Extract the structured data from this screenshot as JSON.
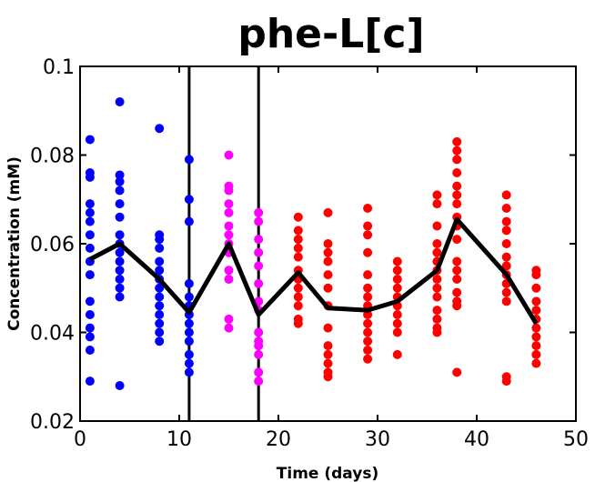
{
  "chart_data": {
    "type": "scatter",
    "title": "phe-L[c]",
    "xlabel": "Time (days)",
    "ylabel": "Concentration (mM)",
    "xlim": [
      0,
      50
    ],
    "ylim": [
      0.02,
      0.1
    ],
    "xticks": [
      0,
      10,
      20,
      30,
      40,
      50
    ],
    "yticks": [
      0.02,
      0.04,
      0.06,
      0.08,
      0.1
    ],
    "xtick_labels": [
      "0",
      "10",
      "20",
      "30",
      "40",
      "50"
    ],
    "ytick_labels": [
      "0.02",
      "0.04",
      "0.06",
      "0.08",
      "0.1"
    ],
    "grid": false,
    "legend": "none",
    "vertical_lines_x": [
      11,
      18
    ],
    "series": [
      {
        "color": "#0000ff",
        "points": [
          [
            1,
            0.0835
          ],
          [
            1,
            0.076
          ],
          [
            1,
            0.075
          ],
          [
            1,
            0.069
          ],
          [
            1,
            0.067
          ],
          [
            1,
            0.065
          ],
          [
            1,
            0.062
          ],
          [
            1,
            0.059
          ],
          [
            1,
            0.056
          ],
          [
            1,
            0.053
          ],
          [
            1,
            0.047
          ],
          [
            1,
            0.044
          ],
          [
            1,
            0.041
          ],
          [
            1,
            0.039
          ],
          [
            1,
            0.036
          ],
          [
            1,
            0.029
          ],
          [
            4,
            0.092
          ],
          [
            4,
            0.0755
          ],
          [
            4,
            0.074
          ],
          [
            4,
            0.072
          ],
          [
            4,
            0.069
          ],
          [
            4,
            0.066
          ],
          [
            4,
            0.062
          ],
          [
            4,
            0.06
          ],
          [
            4,
            0.058
          ],
          [
            4,
            0.056
          ],
          [
            4,
            0.054
          ],
          [
            4,
            0.052
          ],
          [
            4,
            0.05
          ],
          [
            4,
            0.048
          ],
          [
            4,
            0.028
          ],
          [
            8,
            0.086
          ],
          [
            8,
            0.062
          ],
          [
            8,
            0.061
          ],
          [
            8,
            0.059
          ],
          [
            8,
            0.056
          ],
          [
            8,
            0.054
          ],
          [
            8,
            0.052
          ],
          [
            8,
            0.05
          ],
          [
            8,
            0.048
          ],
          [
            8,
            0.046
          ],
          [
            8,
            0.044
          ],
          [
            8,
            0.042
          ],
          [
            8,
            0.04
          ],
          [
            8,
            0.038
          ],
          [
            11,
            0.079
          ],
          [
            11,
            0.07
          ],
          [
            11,
            0.065
          ],
          [
            11,
            0.051
          ],
          [
            11,
            0.048
          ],
          [
            11,
            0.046
          ],
          [
            11,
            0.044
          ],
          [
            11,
            0.042
          ],
          [
            11,
            0.04
          ],
          [
            11,
            0.038
          ],
          [
            11,
            0.035
          ],
          [
            11,
            0.033
          ],
          [
            11,
            0.031
          ]
        ]
      },
      {
        "color": "#ff00ff",
        "points": [
          [
            15,
            0.08
          ],
          [
            15,
            0.073
          ],
          [
            15,
            0.072
          ],
          [
            15,
            0.069
          ],
          [
            15,
            0.067
          ],
          [
            15,
            0.064
          ],
          [
            15,
            0.062
          ],
          [
            15,
            0.06
          ],
          [
            15,
            0.058
          ],
          [
            15,
            0.054
          ],
          [
            15,
            0.052
          ],
          [
            15,
            0.043
          ],
          [
            15,
            0.041
          ],
          [
            18,
            0.067
          ],
          [
            18,
            0.065
          ],
          [
            18,
            0.061
          ],
          [
            18,
            0.058
          ],
          [
            18,
            0.055
          ],
          [
            18,
            0.051
          ],
          [
            18,
            0.047
          ],
          [
            18,
            0.045
          ],
          [
            18,
            0.04
          ],
          [
            18,
            0.038
          ],
          [
            18,
            0.037
          ],
          [
            18,
            0.035
          ],
          [
            18,
            0.031
          ],
          [
            18,
            0.029
          ]
        ]
      },
      {
        "color": "#ff0000",
        "points": [
          [
            22,
            0.066
          ],
          [
            22,
            0.063
          ],
          [
            22,
            0.061
          ],
          [
            22,
            0.059
          ],
          [
            22,
            0.057
          ],
          [
            22,
            0.054
          ],
          [
            22,
            0.052
          ],
          [
            22,
            0.05
          ],
          [
            22,
            0.048
          ],
          [
            22,
            0.046
          ],
          [
            22,
            0.043
          ],
          [
            22,
            0.042
          ],
          [
            25,
            0.067
          ],
          [
            25,
            0.06
          ],
          [
            25,
            0.058
          ],
          [
            25,
            0.056
          ],
          [
            25,
            0.053
          ],
          [
            25,
            0.05
          ],
          [
            25,
            0.046
          ],
          [
            25,
            0.041
          ],
          [
            25,
            0.037
          ],
          [
            25,
            0.035
          ],
          [
            25,
            0.033
          ],
          [
            25,
            0.031
          ],
          [
            25,
            0.03
          ],
          [
            29,
            0.068
          ],
          [
            29,
            0.064
          ],
          [
            29,
            0.062
          ],
          [
            29,
            0.058
          ],
          [
            29,
            0.053
          ],
          [
            29,
            0.05
          ],
          [
            29,
            0.048
          ],
          [
            29,
            0.046
          ],
          [
            29,
            0.044
          ],
          [
            29,
            0.042
          ],
          [
            29,
            0.04
          ],
          [
            29,
            0.038
          ],
          [
            29,
            0.036
          ],
          [
            29,
            0.034
          ],
          [
            32,
            0.056
          ],
          [
            32,
            0.054
          ],
          [
            32,
            0.052
          ],
          [
            32,
            0.05
          ],
          [
            32,
            0.048
          ],
          [
            32,
            0.046
          ],
          [
            32,
            0.044
          ],
          [
            32,
            0.042
          ],
          [
            32,
            0.04
          ],
          [
            32,
            0.035
          ],
          [
            36,
            0.071
          ],
          [
            36,
            0.069
          ],
          [
            36,
            0.064
          ],
          [
            36,
            0.06
          ],
          [
            36,
            0.058
          ],
          [
            36,
            0.056
          ],
          [
            36,
            0.054
          ],
          [
            36,
            0.052
          ],
          [
            36,
            0.05
          ],
          [
            36,
            0.048
          ],
          [
            36,
            0.045
          ],
          [
            36,
            0.043
          ],
          [
            36,
            0.041
          ],
          [
            36,
            0.04
          ],
          [
            38,
            0.083
          ],
          [
            38,
            0.081
          ],
          [
            38,
            0.079
          ],
          [
            38,
            0.076
          ],
          [
            38,
            0.073
          ],
          [
            38,
            0.071
          ],
          [
            38,
            0.069
          ],
          [
            38,
            0.066
          ],
          [
            38,
            0.064
          ],
          [
            38,
            0.061
          ],
          [
            38,
            0.056
          ],
          [
            38,
            0.054
          ],
          [
            38,
            0.052
          ],
          [
            38,
            0.049
          ],
          [
            38,
            0.047
          ],
          [
            38,
            0.046
          ],
          [
            38,
            0.031
          ],
          [
            43,
            0.071
          ],
          [
            43,
            0.068
          ],
          [
            43,
            0.065
          ],
          [
            43,
            0.063
          ],
          [
            43,
            0.06
          ],
          [
            43,
            0.057
          ],
          [
            43,
            0.055
          ],
          [
            43,
            0.053
          ],
          [
            43,
            0.051
          ],
          [
            43,
            0.049
          ],
          [
            43,
            0.047
          ],
          [
            43,
            0.03
          ],
          [
            43,
            0.029
          ],
          [
            46,
            0.054
          ],
          [
            46,
            0.053
          ],
          [
            46,
            0.05
          ],
          [
            46,
            0.047
          ],
          [
            46,
            0.045
          ],
          [
            46,
            0.043
          ],
          [
            46,
            0.041
          ],
          [
            46,
            0.039
          ],
          [
            46,
            0.037
          ],
          [
            46,
            0.035
          ],
          [
            46,
            0.033
          ]
        ]
      },
      {
        "color": "#000000",
        "type": "line",
        "points": [
          [
            1,
            0.0565
          ],
          [
            4,
            0.06
          ],
          [
            8,
            0.052
          ],
          [
            11,
            0.0445
          ],
          [
            15,
            0.06
          ],
          [
            18,
            0.044
          ],
          [
            22,
            0.0535
          ],
          [
            25,
            0.0455
          ],
          [
            29,
            0.045
          ],
          [
            32,
            0.047
          ],
          [
            36,
            0.054
          ],
          [
            38,
            0.0655
          ],
          [
            43,
            0.053
          ],
          [
            46,
            0.042
          ]
        ]
      }
    ]
  }
}
